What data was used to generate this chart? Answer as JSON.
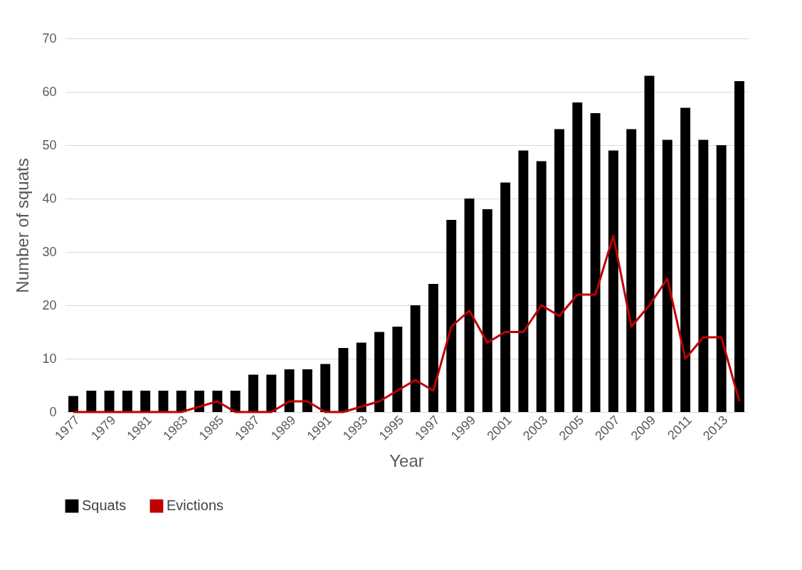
{
  "chart_data": {
    "type": "bar",
    "xlabel": "Year",
    "ylabel": "Number of squats",
    "categories": [
      "1977",
      null,
      "1979",
      null,
      "1981",
      null,
      "1983",
      null,
      "1985",
      null,
      "1987",
      null,
      "1989",
      null,
      "1991",
      null,
      "1993",
      null,
      "1995",
      null,
      "1997",
      null,
      "1999",
      null,
      "2001",
      null,
      "2003",
      null,
      "2005",
      null,
      "2007",
      null,
      "2009",
      null,
      "2011",
      null,
      "2013",
      null
    ],
    "series": [
      {
        "name": "Squats",
        "color": "#000000",
        "values": [
          3,
          4,
          4,
          4,
          4,
          4,
          4,
          4,
          4,
          4,
          7,
          7,
          8,
          8,
          9,
          12,
          13,
          15,
          16,
          20,
          24,
          36,
          40,
          38,
          43,
          49,
          47,
          53,
          58,
          56,
          49,
          53,
          63,
          51,
          57,
          51,
          50,
          62
        ]
      },
      {
        "name": "Evictions",
        "type": "line",
        "color": "#c00000",
        "values": [
          0,
          0,
          0,
          0,
          0,
          0,
          0,
          1,
          2,
          0,
          0,
          0,
          2,
          2,
          0,
          0,
          1,
          2,
          4,
          6,
          4,
          16,
          19,
          13,
          15,
          15,
          20,
          18,
          22,
          22,
          33,
          16,
          20,
          25,
          10,
          14,
          14,
          2
        ]
      }
    ],
    "ylim": [
      0,
      70
    ],
    "yticks": [
      0,
      10,
      20,
      30,
      40,
      50,
      60,
      70
    ],
    "grid": "y",
    "legend": "bottom"
  }
}
